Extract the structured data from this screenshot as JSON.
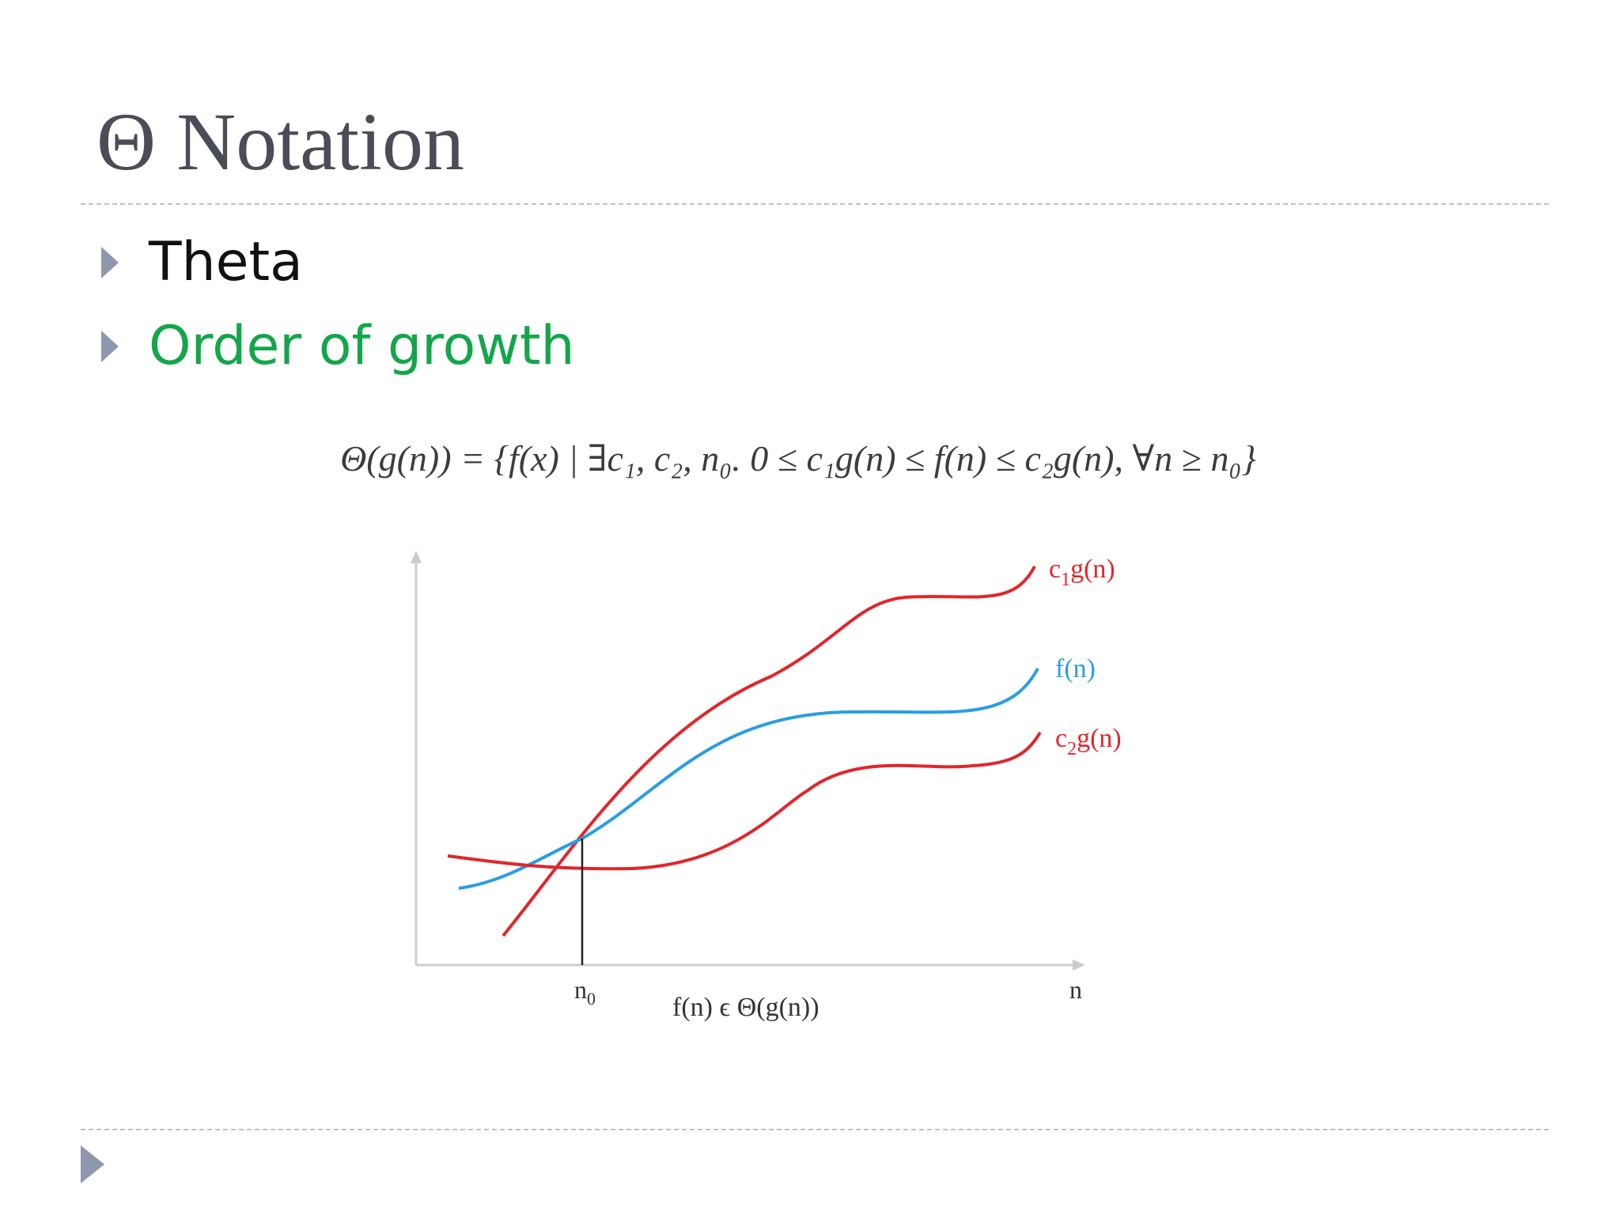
{
  "slide": {
    "title": "Θ Notation",
    "bullets": [
      {
        "text": "Theta",
        "color": "#111111"
      },
      {
        "text": "Order of growth",
        "color": "#13a64a"
      }
    ],
    "formula": "Θ(g(n)) = {f(x) | ∃c₁, c₂, n₀. 0 ≤ c₁g(n) ≤ f(n) ≤ c₂g(n), ∀n ≥ n₀}"
  },
  "diagram": {
    "curves": [
      {
        "label_main": "c",
        "label_sub": "1",
        "label_rest": "g(n)",
        "color": "#e0262b"
      },
      {
        "label_main": "f(n)",
        "label_sub": "",
        "label_rest": "",
        "color": "#2a9de3"
      },
      {
        "label_main": "c",
        "label_sub": "2",
        "label_rest": "g(n)",
        "color": "#e0262b"
      }
    ],
    "n0_main": "n",
    "n0_sub": "0",
    "x_axis_label": "n",
    "caption": "f(n) ϵ Θ(g(n))",
    "axis_color": "#c9ccd2",
    "marker_color": "#222222"
  }
}
